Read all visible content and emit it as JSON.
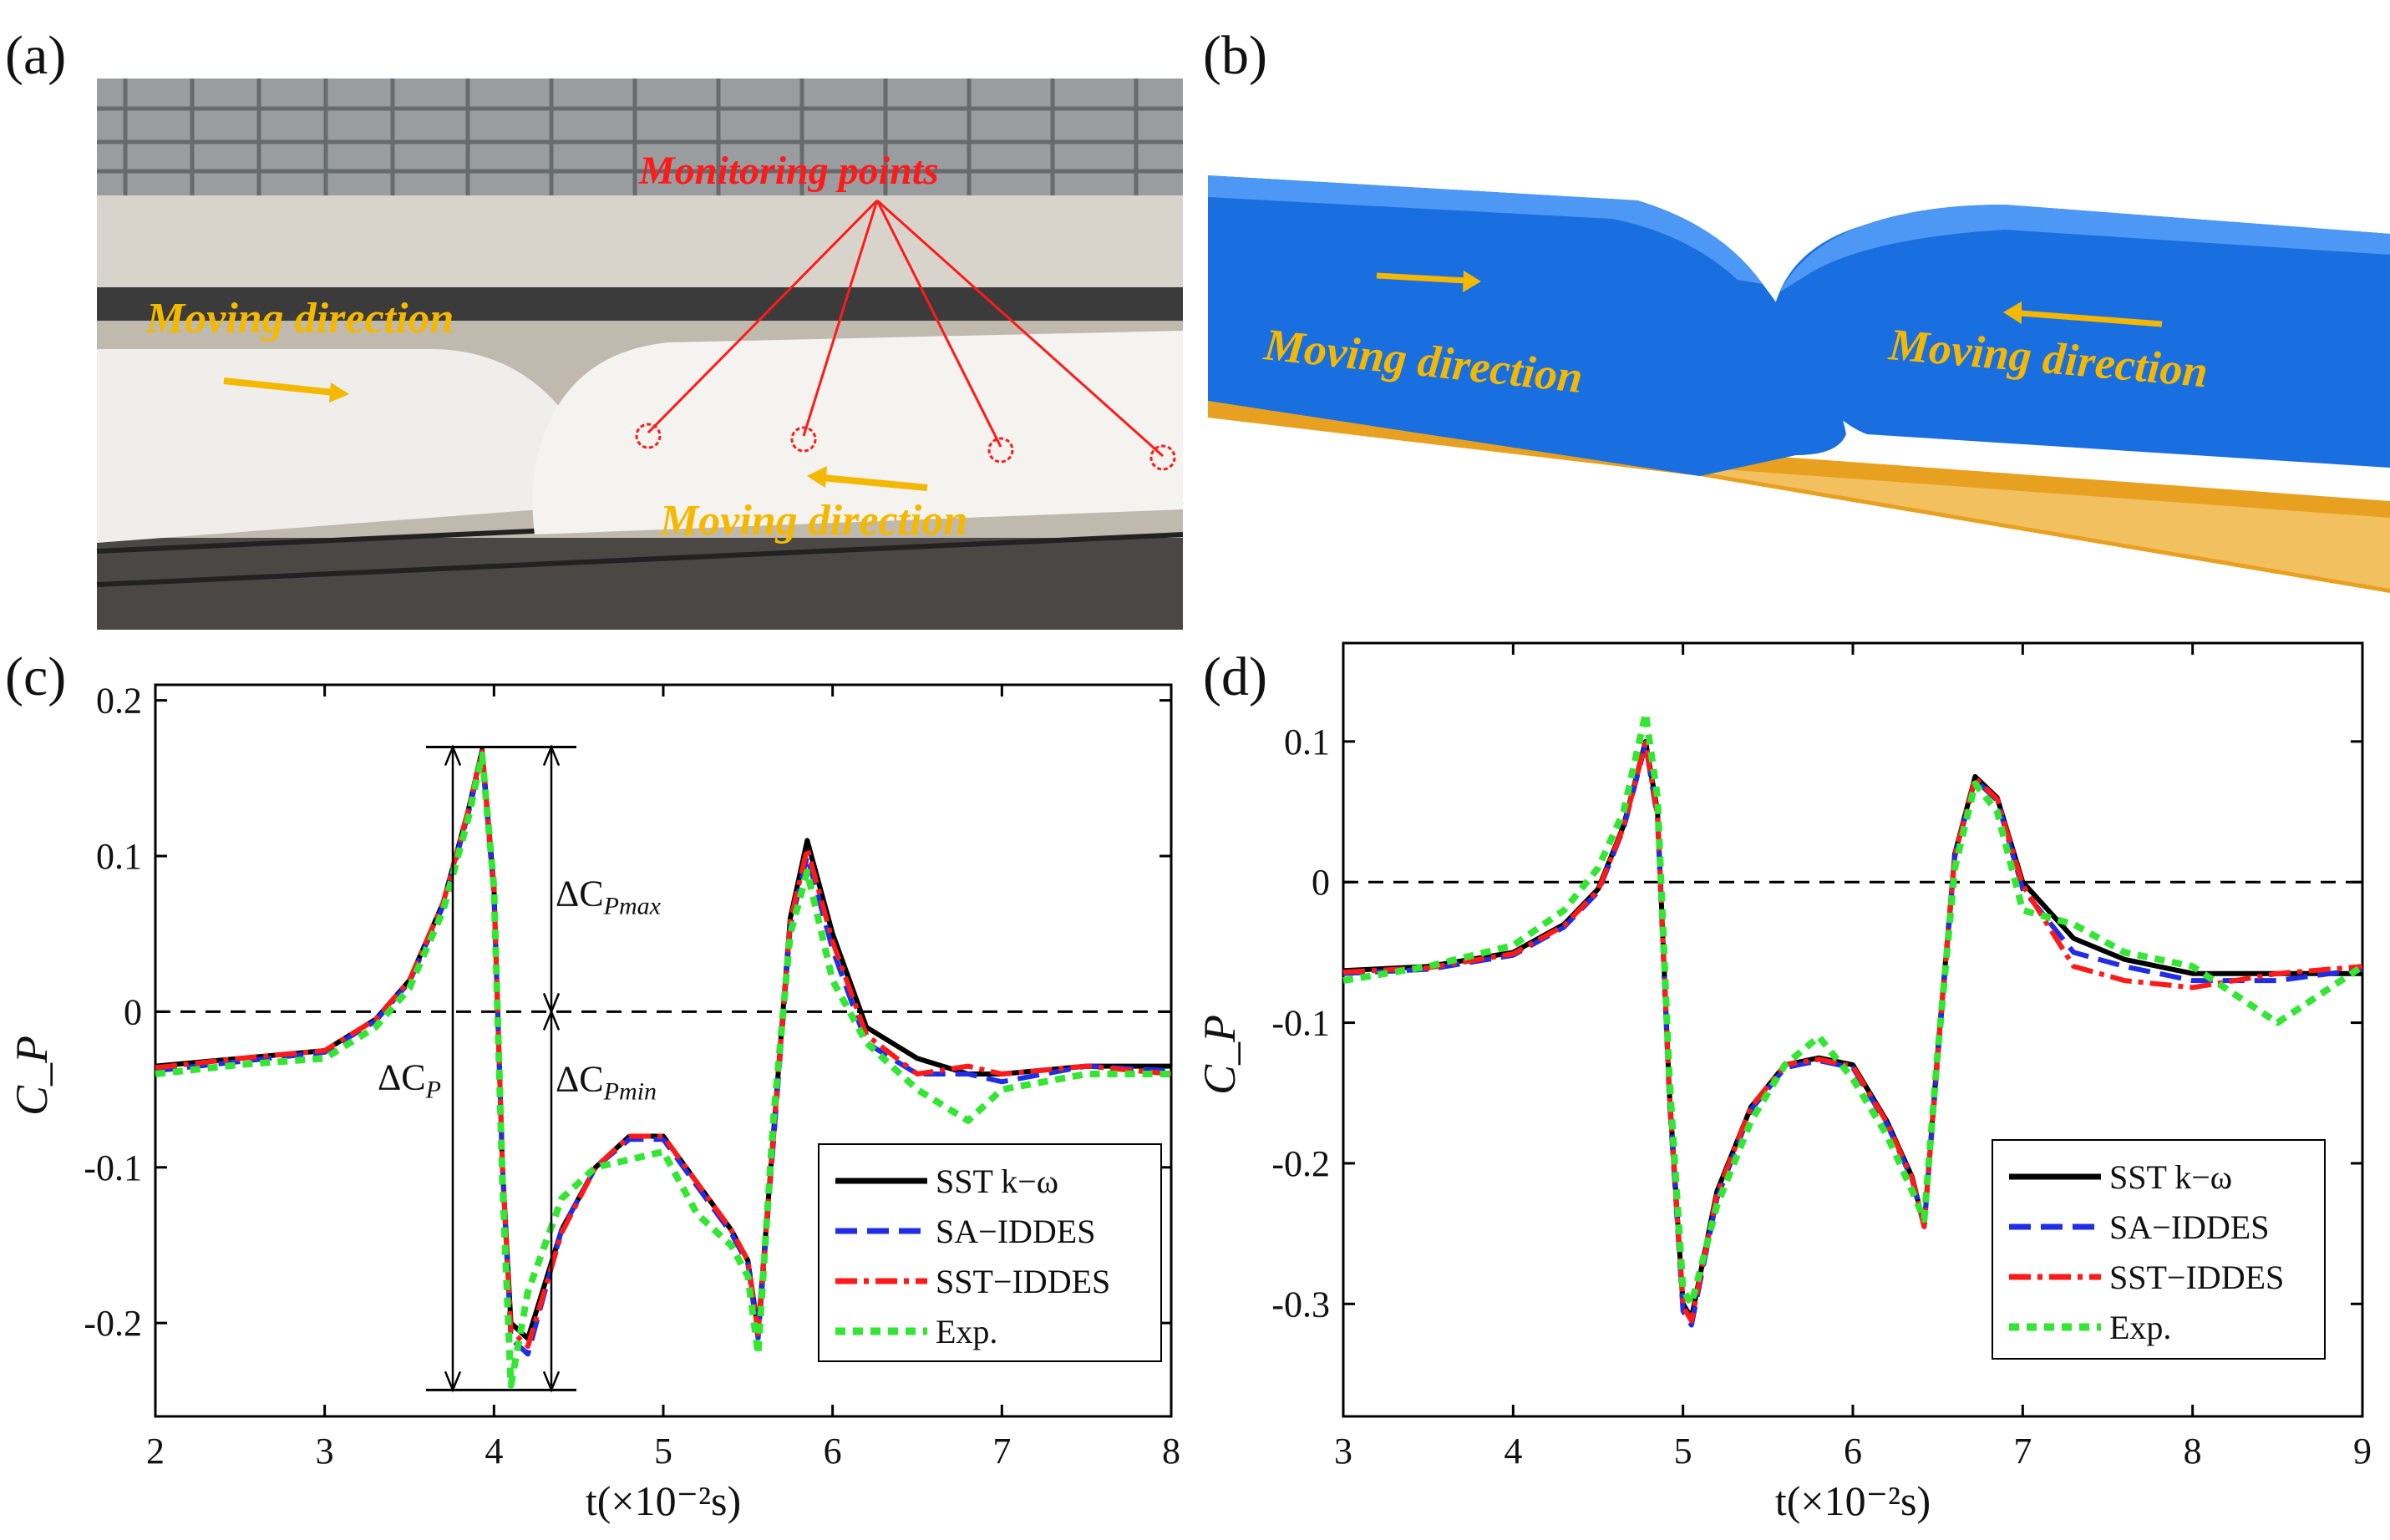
{
  "panels": {
    "a": {
      "label": "(a)",
      "monitoring_label": "Monitoring points",
      "moving_label_1": "Moving direction",
      "moving_label_2": "Moving direction"
    },
    "b": {
      "label": "(b)",
      "moving_label_1": "Moving direction",
      "moving_label_2": "Moving direction"
    }
  },
  "colors": {
    "sst_kw": "#000000",
    "sa_iddes": "#1f2ee6",
    "sst_iddes": "#ff1a1a",
    "exp": "#33e633",
    "annotation_red": "#ff1a1a",
    "arrow_orange": "#f5b800",
    "train_blue": "#1a6fe0",
    "track_orange": "#e8a020"
  },
  "chart_data": [
    {
      "label": "(c)",
      "type": "line",
      "xlabel": "t(×10⁻²s)",
      "ylabel": "C_P",
      "xlim": [
        2,
        8
      ],
      "ylim": [
        -0.26,
        0.21
      ],
      "xticks": [
        2,
        3,
        4,
        5,
        6,
        7,
        8
      ],
      "yticks": [
        0.2,
        0.1,
        0,
        -0.1,
        -0.2
      ],
      "ytick_labels": [
        "0.2",
        "0.1",
        "0",
        "-0.1",
        "-0.2"
      ],
      "zero_line": "dashed",
      "grid": false,
      "legend_position": "bottom-right",
      "annotations": {
        "dcp": "ΔC",
        "dcp_sub": "P",
        "dcpmax": "ΔC",
        "dcpmax_sub": "Pmax",
        "dcpmin": "ΔC",
        "dcpmin_sub": "Pmin",
        "top_value": 0.17,
        "bottom_value": -0.243
      },
      "series": [
        {
          "name": "SST k−ω",
          "color_key": "sst_kw",
          "style": "solid"
        },
        {
          "name": "SA−IDDES",
          "color_key": "sa_iddes",
          "style": "dash"
        },
        {
          "name": "SST−IDDES",
          "color_key": "sst_iddes",
          "style": "dashdot"
        },
        {
          "name": "Exp.",
          "color_key": "exp",
          "style": "dot"
        }
      ],
      "x": [
        2.0,
        2.5,
        3.0,
        3.3,
        3.5,
        3.7,
        3.85,
        3.93,
        4.0,
        4.05,
        4.1,
        4.2,
        4.4,
        4.6,
        4.8,
        5.0,
        5.2,
        5.4,
        5.5,
        5.56,
        5.65,
        5.75,
        5.85,
        6.0,
        6.2,
        6.5,
        6.8,
        7.0,
        7.5,
        8.0
      ],
      "values": [
        [
          -0.035,
          -0.03,
          -0.025,
          -0.005,
          0.02,
          0.07,
          0.13,
          0.168,
          0.08,
          -0.1,
          -0.2,
          -0.21,
          -0.14,
          -0.1,
          -0.08,
          -0.08,
          -0.11,
          -0.14,
          -0.16,
          -0.205,
          -0.08,
          0.06,
          0.11,
          0.05,
          -0.01,
          -0.03,
          -0.04,
          -0.04,
          -0.035,
          -0.035
        ],
        [
          -0.038,
          -0.032,
          -0.026,
          -0.006,
          0.019,
          0.068,
          0.128,
          0.165,
          0.075,
          -0.1,
          -0.21,
          -0.22,
          -0.14,
          -0.1,
          -0.082,
          -0.082,
          -0.112,
          -0.142,
          -0.162,
          -0.21,
          -0.085,
          0.055,
          0.1,
          0.04,
          -0.02,
          -0.04,
          -0.04,
          -0.045,
          -0.035,
          -0.038
        ],
        [
          -0.036,
          -0.03,
          -0.025,
          -0.005,
          0.02,
          0.07,
          0.13,
          0.167,
          0.078,
          -0.1,
          -0.205,
          -0.215,
          -0.142,
          -0.1,
          -0.08,
          -0.08,
          -0.11,
          -0.14,
          -0.16,
          -0.207,
          -0.082,
          0.058,
          0.105,
          0.045,
          -0.015,
          -0.04,
          -0.035,
          -0.04,
          -0.035,
          -0.04
        ],
        [
          -0.04,
          -0.034,
          -0.03,
          -0.01,
          0.015,
          0.065,
          0.125,
          0.165,
          0.08,
          -0.11,
          -0.24,
          -0.18,
          -0.12,
          -0.1,
          -0.095,
          -0.09,
          -0.13,
          -0.15,
          -0.17,
          -0.22,
          -0.07,
          0.05,
          0.09,
          0.02,
          -0.02,
          -0.05,
          -0.07,
          -0.05,
          -0.04,
          -0.04
        ]
      ]
    },
    {
      "label": "(d)",
      "type": "line",
      "xlabel": "t(×10⁻²s)",
      "ylabel": "C_P",
      "xlim": [
        3,
        9
      ],
      "ylim": [
        -0.38,
        0.17
      ],
      "xticks": [
        3,
        4,
        5,
        6,
        7,
        8,
        9
      ],
      "yticks": [
        0.1,
        0,
        -0.1,
        -0.2,
        -0.3
      ],
      "ytick_labels": [
        "0.1",
        "0",
        "-0.1",
        "-0.2",
        "-0.3"
      ],
      "zero_line": "dashed",
      "grid": false,
      "legend_position": "bottom-right",
      "series": [
        {
          "name": "SST k−ω",
          "color_key": "sst_kw",
          "style": "solid"
        },
        {
          "name": "SA−IDDES",
          "color_key": "sa_iddes",
          "style": "dash"
        },
        {
          "name": "SST−IDDES",
          "color_key": "sst_iddes",
          "style": "dashdot"
        },
        {
          "name": "Exp.",
          "color_key": "exp",
          "style": "dot"
        }
      ],
      "x": [
        3.0,
        3.5,
        4.0,
        4.3,
        4.5,
        4.65,
        4.78,
        4.85,
        4.92,
        5.0,
        5.05,
        5.2,
        5.4,
        5.6,
        5.8,
        6.0,
        6.2,
        6.35,
        6.42,
        6.5,
        6.6,
        6.72,
        6.85,
        7.0,
        7.3,
        7.6,
        8.0,
        8.5,
        9.0
      ],
      "values": [
        [
          -0.063,
          -0.06,
          -0.05,
          -0.03,
          -0.005,
          0.04,
          0.1,
          0.05,
          -0.15,
          -0.3,
          -0.31,
          -0.22,
          -0.16,
          -0.13,
          -0.125,
          -0.13,
          -0.17,
          -0.21,
          -0.245,
          -0.12,
          0.02,
          0.075,
          0.06,
          0.0,
          -0.04,
          -0.055,
          -0.065,
          -0.065,
          -0.065
        ],
        [
          -0.065,
          -0.062,
          -0.052,
          -0.032,
          -0.007,
          0.038,
          0.098,
          0.045,
          -0.155,
          -0.305,
          -0.315,
          -0.225,
          -0.162,
          -0.132,
          -0.127,
          -0.132,
          -0.172,
          -0.212,
          -0.245,
          -0.125,
          0.018,
          0.073,
          0.058,
          -0.005,
          -0.05,
          -0.06,
          -0.07,
          -0.07,
          -0.062
        ],
        [
          -0.064,
          -0.061,
          -0.051,
          -0.031,
          -0.006,
          0.039,
          0.099,
          0.047,
          -0.152,
          -0.302,
          -0.312,
          -0.222,
          -0.16,
          -0.13,
          -0.126,
          -0.131,
          -0.171,
          -0.211,
          -0.245,
          -0.122,
          0.019,
          0.074,
          0.059,
          -0.002,
          -0.06,
          -0.07,
          -0.075,
          -0.065,
          -0.06
        ],
        [
          -0.07,
          -0.06,
          -0.045,
          -0.02,
          0.01,
          0.05,
          0.12,
          0.06,
          -0.14,
          -0.29,
          -0.3,
          -0.23,
          -0.17,
          -0.13,
          -0.11,
          -0.14,
          -0.18,
          -0.22,
          -0.24,
          -0.12,
          0.01,
          0.07,
          0.05,
          -0.02,
          -0.03,
          -0.05,
          -0.06,
          -0.1,
          -0.06
        ]
      ]
    }
  ]
}
